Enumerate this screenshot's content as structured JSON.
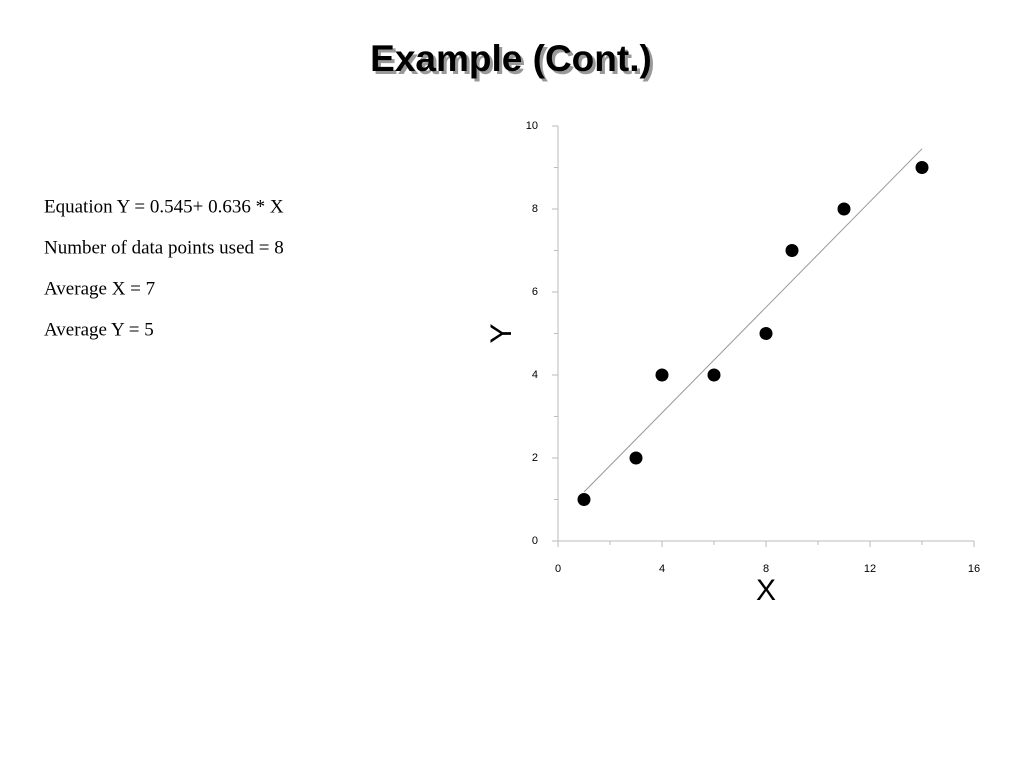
{
  "chart_data": {
    "type": "scatter",
    "title": "Example (Cont.)",
    "annotations": [
      "Equation Y = 0.545+ 0.636 * X",
      "Number of data points used = 8",
      "Average X = 7",
      "Average Y = 5"
    ],
    "x_label": "X",
    "y_label": "Y",
    "x": [
      1,
      3,
      4,
      6,
      8,
      9,
      11,
      14
    ],
    "values": [
      1,
      2,
      4,
      4,
      5,
      7,
      8,
      9
    ],
    "color": "#000000",
    "fit_x": [
      1,
      14
    ],
    "fit_y": [
      1.18,
      9.45
    ],
    "fit_color": "#999999",
    "xlim": [
      0,
      16
    ],
    "xticks": [
      0,
      4,
      8,
      12,
      16
    ],
    "xminor": [
      2,
      6,
      10,
      14
    ],
    "ylim": [
      0,
      10
    ],
    "yticks": [
      0,
      2,
      4,
      6,
      8,
      10
    ],
    "yminor": [
      1,
      3,
      5,
      7,
      9
    ]
  }
}
